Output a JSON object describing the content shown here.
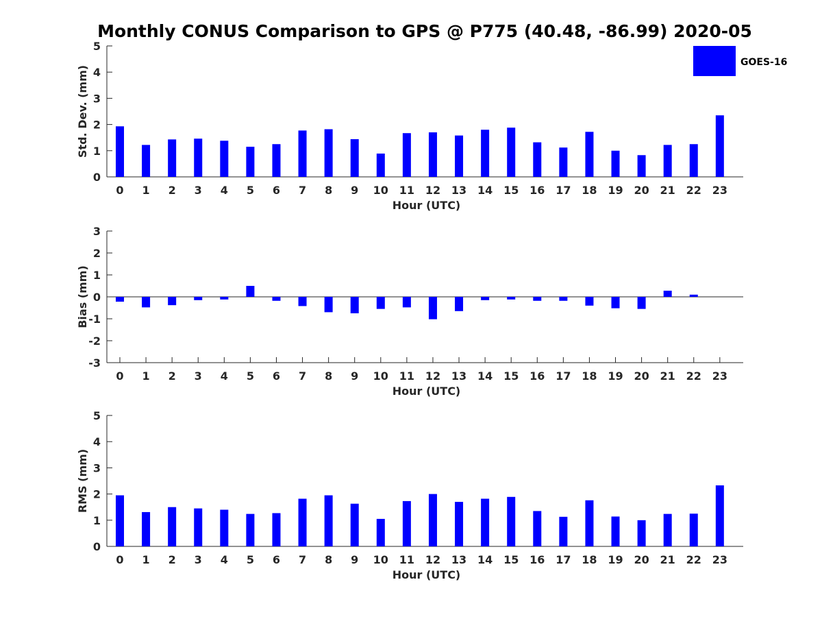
{
  "chart_data": {
    "type": "bar",
    "title": "Monthly CONUS Comparison to GPS @ P775 (40.48, -86.99) 2020-05",
    "legend": {
      "label": "GOES-16",
      "color": "#0000ff",
      "placement": "top-right"
    },
    "categories": [
      "0",
      "1",
      "2",
      "3",
      "4",
      "5",
      "6",
      "7",
      "8",
      "9",
      "10",
      "11",
      "12",
      "13",
      "14",
      "15",
      "16",
      "17",
      "18",
      "19",
      "20",
      "21",
      "22",
      "23"
    ],
    "panels": [
      {
        "id": "std",
        "ylabel": "Std. Dev. (mm)",
        "xlabel": "Hour (UTC)",
        "ylim": [
          0,
          5
        ],
        "yticks": [
          "0",
          "1",
          "2",
          "3",
          "4",
          "5"
        ],
        "values": [
          1.93,
          1.22,
          1.43,
          1.46,
          1.38,
          1.15,
          1.25,
          1.77,
          1.82,
          1.44,
          0.89,
          1.67,
          1.7,
          1.58,
          1.8,
          1.88,
          1.32,
          1.12,
          1.72,
          1.0,
          0.83,
          1.22,
          1.25,
          2.35
        ]
      },
      {
        "id": "bias",
        "ylabel": "Bias (mm)",
        "xlabel": "Hour (UTC)",
        "ylim": [
          -3,
          3
        ],
        "yticks": [
          "-3",
          "-2",
          "-1",
          "0",
          "1",
          "2",
          "3"
        ],
        "values": [
          -0.22,
          -0.48,
          -0.38,
          -0.15,
          -0.12,
          0.5,
          -0.18,
          -0.42,
          -0.7,
          -0.75,
          -0.55,
          -0.48,
          -1.02,
          -0.65,
          -0.15,
          -0.12,
          -0.18,
          -0.18,
          -0.4,
          -0.52,
          -0.55,
          0.28,
          0.1,
          0.0
        ]
      },
      {
        "id": "rms",
        "ylabel": "RMS (mm)",
        "xlabel": "Hour (UTC)",
        "ylim": [
          0,
          5
        ],
        "yticks": [
          "0",
          "1",
          "2",
          "3",
          "4",
          "5"
        ],
        "values": [
          1.95,
          1.31,
          1.5,
          1.45,
          1.4,
          1.24,
          1.27,
          1.82,
          1.95,
          1.63,
          1.05,
          1.73,
          2.0,
          1.7,
          1.82,
          1.89,
          1.35,
          1.13,
          1.76,
          1.14,
          1.0,
          1.24,
          1.25,
          2.33
        ]
      }
    ]
  }
}
